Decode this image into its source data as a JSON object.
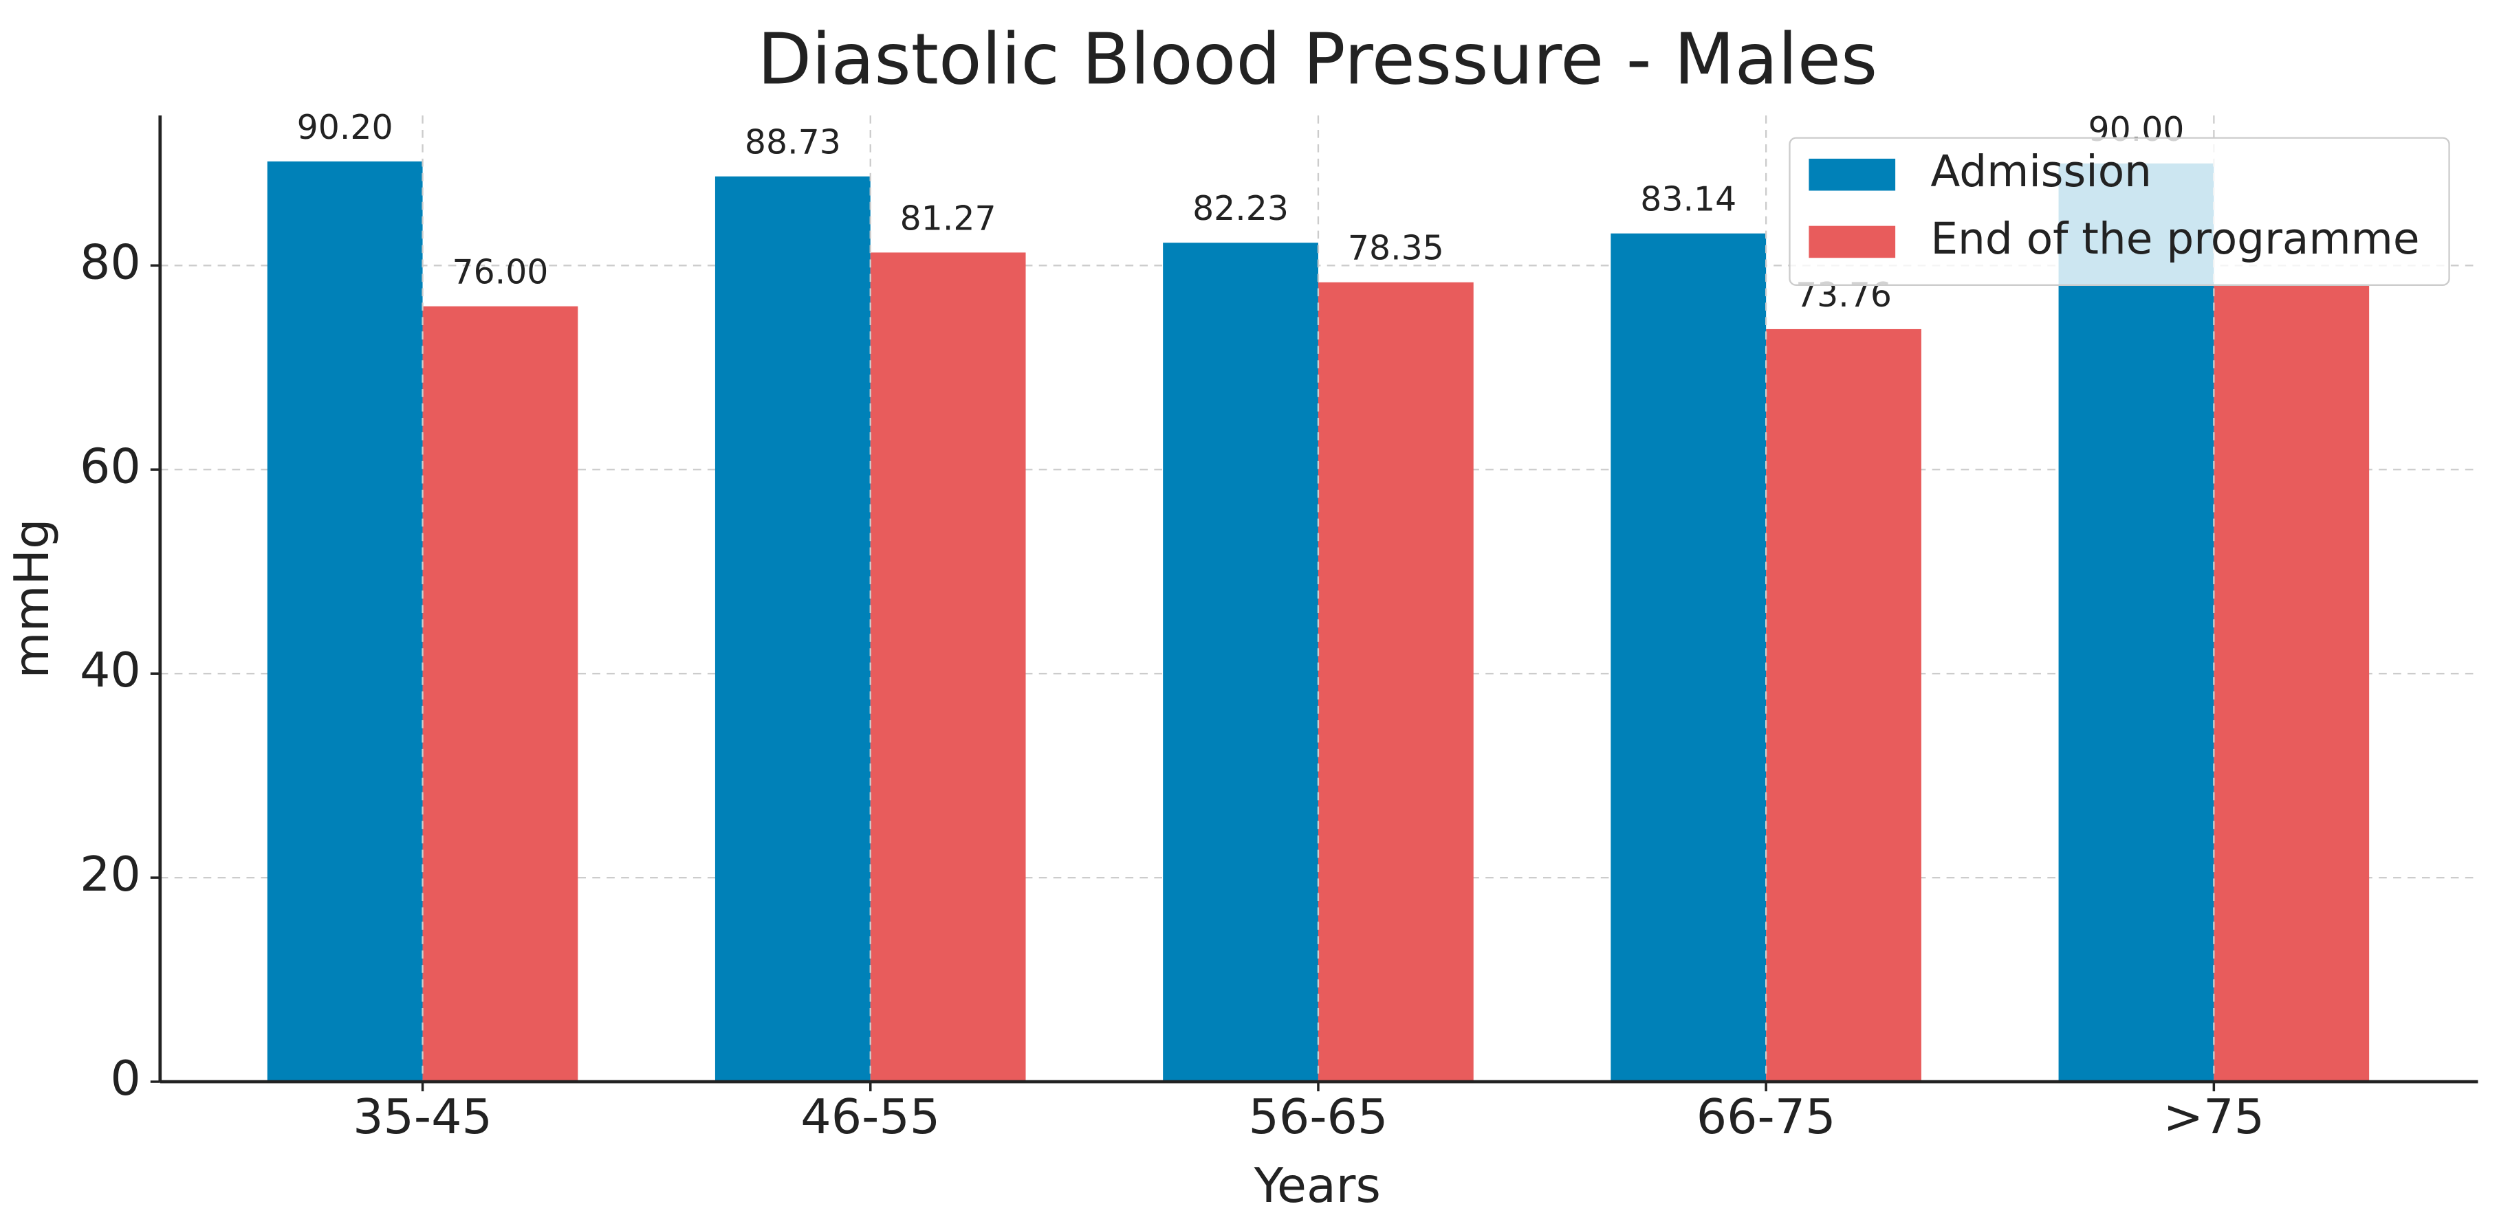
{
  "chart_data": {
    "type": "bar",
    "title": "Diastolic Blood Pressure - Males",
    "x_label": "Years",
    "y_label": "mmHg",
    "categories": [
      "35-45",
      "46-55",
      "56-65",
      "66-75",
      ">75"
    ],
    "series": [
      {
        "name": "Admission",
        "color": "#0081b8",
        "values": [
          90.2,
          88.73,
          82.23,
          83.14,
          90.0
        ],
        "value_labels": [
          "90.20",
          "88.73",
          "82.23",
          "83.14",
          "90.00"
        ]
      },
      {
        "name": "End of the programme",
        "color": "#e85c5c",
        "values": [
          76.0,
          81.27,
          78.35,
          73.76,
          78
        ],
        "value_labels": [
          "76.00",
          "81.27",
          "78.35",
          "73.76",
          null
        ]
      }
    ],
    "ylim": [
      0,
      94.7
    ],
    "yticks": [
      0,
      20,
      40,
      60,
      80
    ],
    "grid": true,
    "legend": "upper right"
  }
}
